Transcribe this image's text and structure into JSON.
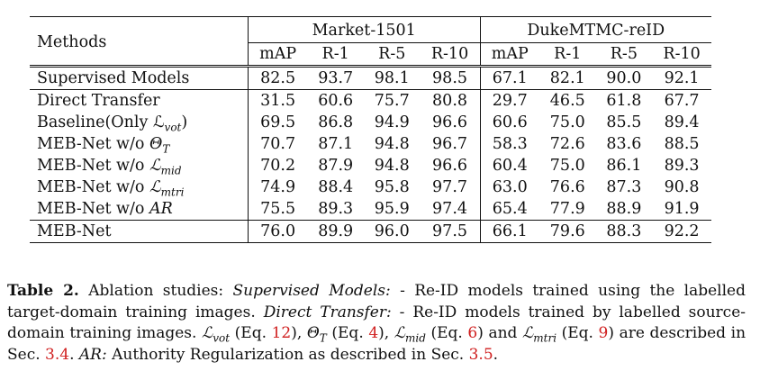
{
  "table": {
    "methods_header": "Methods",
    "groups": [
      "Market-1501",
      "DukeMTMC-reID"
    ],
    "metrics": [
      "mAP",
      "R-1",
      "R-5",
      "R-10"
    ],
    "rows": [
      {
        "method": "Supervised Models",
        "values": [
          "82.5",
          "93.7",
          "98.1",
          "98.5",
          "67.1",
          "82.1",
          "90.0",
          "92.1"
        ]
      },
      {
        "method": "Direct Transfer",
        "values": [
          "31.5",
          "60.6",
          "75.7",
          "80.8",
          "29.7",
          "46.5",
          "61.8",
          "67.7"
        ]
      },
      {
        "method": "Baseline(Only ℒ",
        "sub": "vot",
        "suffix": ")",
        "values": [
          "69.5",
          "86.8",
          "94.9",
          "96.6",
          "60.6",
          "75.0",
          "85.5",
          "89.4"
        ]
      },
      {
        "method": "MEB-Net w/o ",
        "math": "Θ",
        "sub": "T",
        "values": [
          "70.7",
          "87.1",
          "94.8",
          "96.7",
          "58.3",
          "72.6",
          "83.6",
          "88.5"
        ]
      },
      {
        "method": "MEB-Net w/o ",
        "math": "ℒ",
        "sub": "mid",
        "values": [
          "70.2",
          "87.9",
          "94.8",
          "96.6",
          "60.4",
          "75.0",
          "86.1",
          "89.3"
        ]
      },
      {
        "method": "MEB-Net w/o ",
        "math": "ℒ",
        "sub": "mtri",
        "values": [
          "74.9",
          "88.4",
          "95.8",
          "97.7",
          "63.0",
          "76.6",
          "87.3",
          "90.8"
        ]
      },
      {
        "method": "MEB-Net w/o ",
        "math": "AR",
        "values": [
          "75.5",
          "89.3",
          "95.9",
          "97.4",
          "65.4",
          "77.9",
          "88.9",
          "91.9"
        ]
      },
      {
        "method": "MEB-Net",
        "values": [
          "76.0",
          "89.9",
          "96.0",
          "97.5",
          "66.1",
          "79.6",
          "88.3",
          "92.2"
        ]
      }
    ]
  },
  "caption": {
    "label": "Table 2.",
    "t1": " Ablation studies: ",
    "i1": "Supervised Models:",
    "t2": " - Re-ID models trained using the labelled target-domain training images. ",
    "i2": "Direct Transfer:",
    "t3": " - Re-ID models trained by labelled source-domain training images. ",
    "m1": "ℒ",
    "s1": "vot",
    "t4": " (Eq. ",
    "r1": "12",
    "t5": "), ",
    "m2": "Θ",
    "s2": "T",
    "t6": " (Eq. ",
    "r2": "4",
    "t7": "), ",
    "m3": "ℒ",
    "s3": "mid",
    "t8": " (Eq. ",
    "r3": "6",
    "t9": ") and ",
    "m4": "ℒ",
    "s4": "mtri",
    "t10": " (Eq. ",
    "r4": "9",
    "t11": ") are described in Sec. ",
    "r5": "3.4",
    "t12": ". ",
    "i3": "AR:",
    "t13": " Authority Regularization as described in Sec. ",
    "r6": "3.5",
    "t14": "."
  }
}
